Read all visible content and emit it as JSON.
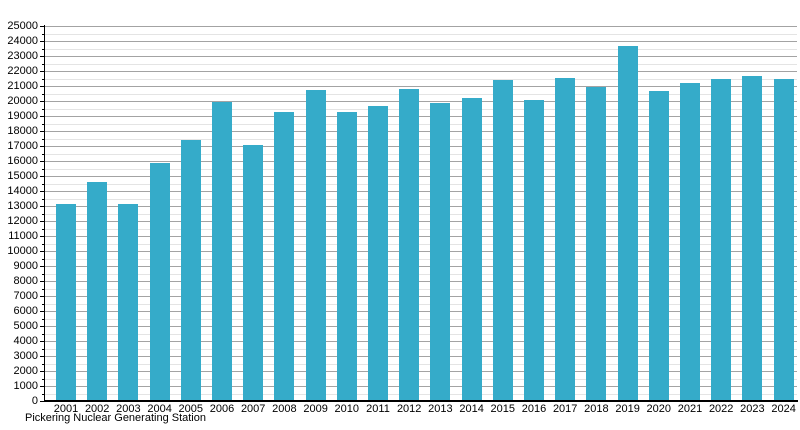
{
  "caption": "Pickering Nuclear Generating Station",
  "chart_data": {
    "type": "bar",
    "title": "",
    "caption": "Pickering Nuclear Generating Station",
    "categories": [
      "2001",
      "2002",
      "2003",
      "2004",
      "2005",
      "2006",
      "2007",
      "2008",
      "2009",
      "2010",
      "2011",
      "2012",
      "2013",
      "2014",
      "2015",
      "2016",
      "2017",
      "2018",
      "2019",
      "2020",
      "2021",
      "2022",
      "2023",
      "2024"
    ],
    "values": [
      13150,
      14600,
      13150,
      15900,
      17400,
      19950,
      17100,
      19300,
      20750,
      19300,
      19700,
      20800,
      19850,
      20200,
      21400,
      20100,
      21550,
      20950,
      23700,
      20700,
      21200,
      21450,
      21700,
      21500
    ],
    "xlabel": "",
    "ylabel": "",
    "ylim": [
      0,
      25000
    ],
    "y_tick_step": 1000,
    "y_minor_step": 500,
    "grid": true,
    "legend_position": "none",
    "colors": {
      "bar": "#35abc9",
      "major_grid": "#a3a3a3",
      "minor_grid": "#e4e4e4",
      "axis": "#000000",
      "background": "#ffffff"
    }
  }
}
